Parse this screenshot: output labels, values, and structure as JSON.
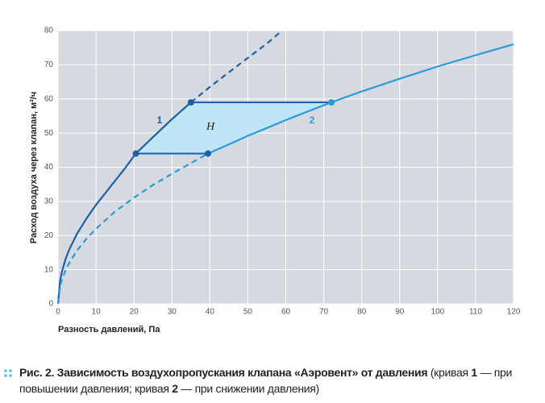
{
  "chart_data": {
    "type": "line",
    "x_label": "Разность давлений, Па",
    "y_label": "Расход воздуха через клапан, м³/ч",
    "xlim": [
      0,
      120
    ],
    "xticks": [
      0,
      10,
      20,
      30,
      40,
      50,
      60,
      70,
      80,
      90,
      100,
      110,
      120
    ],
    "ylim": [
      0,
      80
    ],
    "yticks": [
      0,
      10,
      20,
      30,
      40,
      50,
      60,
      70,
      80
    ],
    "grid": true,
    "series": [
      {
        "color": "#1f5fa6",
        "dashed": false,
        "x": [
          0,
          0.5,
          1,
          2,
          3,
          5,
          7.5,
          10,
          12.5,
          15,
          17.5,
          20.5,
          25,
          30,
          35
        ],
        "values": [
          0,
          6.5,
          9.3,
          13.2,
          16,
          20.5,
          25,
          29,
          32.5,
          36,
          39.5,
          44,
          48.8,
          54.1,
          59
        ]
      },
      {
        "color": "#1f5fa6",
        "dashed": true,
        "x": [
          35,
          40,
          45,
          50,
          55,
          59
        ],
        "values": [
          59,
          63.5,
          67.8,
          72,
          76.2,
          80
        ]
      },
      {
        "color": "#2a9bd8",
        "dashed": false,
        "x": [
          39.5,
          45,
          50,
          55,
          60,
          65,
          72,
          80,
          90,
          100,
          110,
          120
        ],
        "values": [
          44,
          46.7,
          49.2,
          51.5,
          53.8,
          56,
          59,
          62.2,
          65.9,
          69.5,
          72.8,
          76
        ]
      },
      {
        "color": "#2a9bd8",
        "dashed": true,
        "x": [
          0,
          0.5,
          1,
          2,
          3,
          5,
          7.5,
          10,
          15,
          20,
          25,
          30,
          35,
          39.5
        ],
        "values": [
          0,
          4.9,
          7,
          9.9,
          12.1,
          15.6,
          19.1,
          22,
          27,
          31.1,
          34.8,
          38.1,
          41.2,
          44
        ]
      }
    ],
    "points": {
      "x": [
        20.5,
        35,
        72,
        39.5
      ],
      "values": [
        44,
        59,
        59,
        44
      ],
      "colors": [
        "#1f5fa6",
        "#1f5fa6",
        "#2a9bd8",
        "#1f5fa6"
      ]
    },
    "area_color": "#bfe6f7",
    "annotations": [
      "1",
      "2",
      "H"
    ],
    "caption": [
      {
        "text": "Рис. 2. Зависимость воздухопропускания клапана «Аэровент» от давления",
        "bold": true
      },
      {
        "text": " (кривая ",
        "bold": false
      },
      {
        "text": "1",
        "bold": true
      },
      {
        "text": " — при повышении давления; кривая ",
        "bold": false
      },
      {
        "text": "2",
        "bold": true
      },
      {
        "text": " — при снижении давления)",
        "bold": false
      }
    ]
  }
}
